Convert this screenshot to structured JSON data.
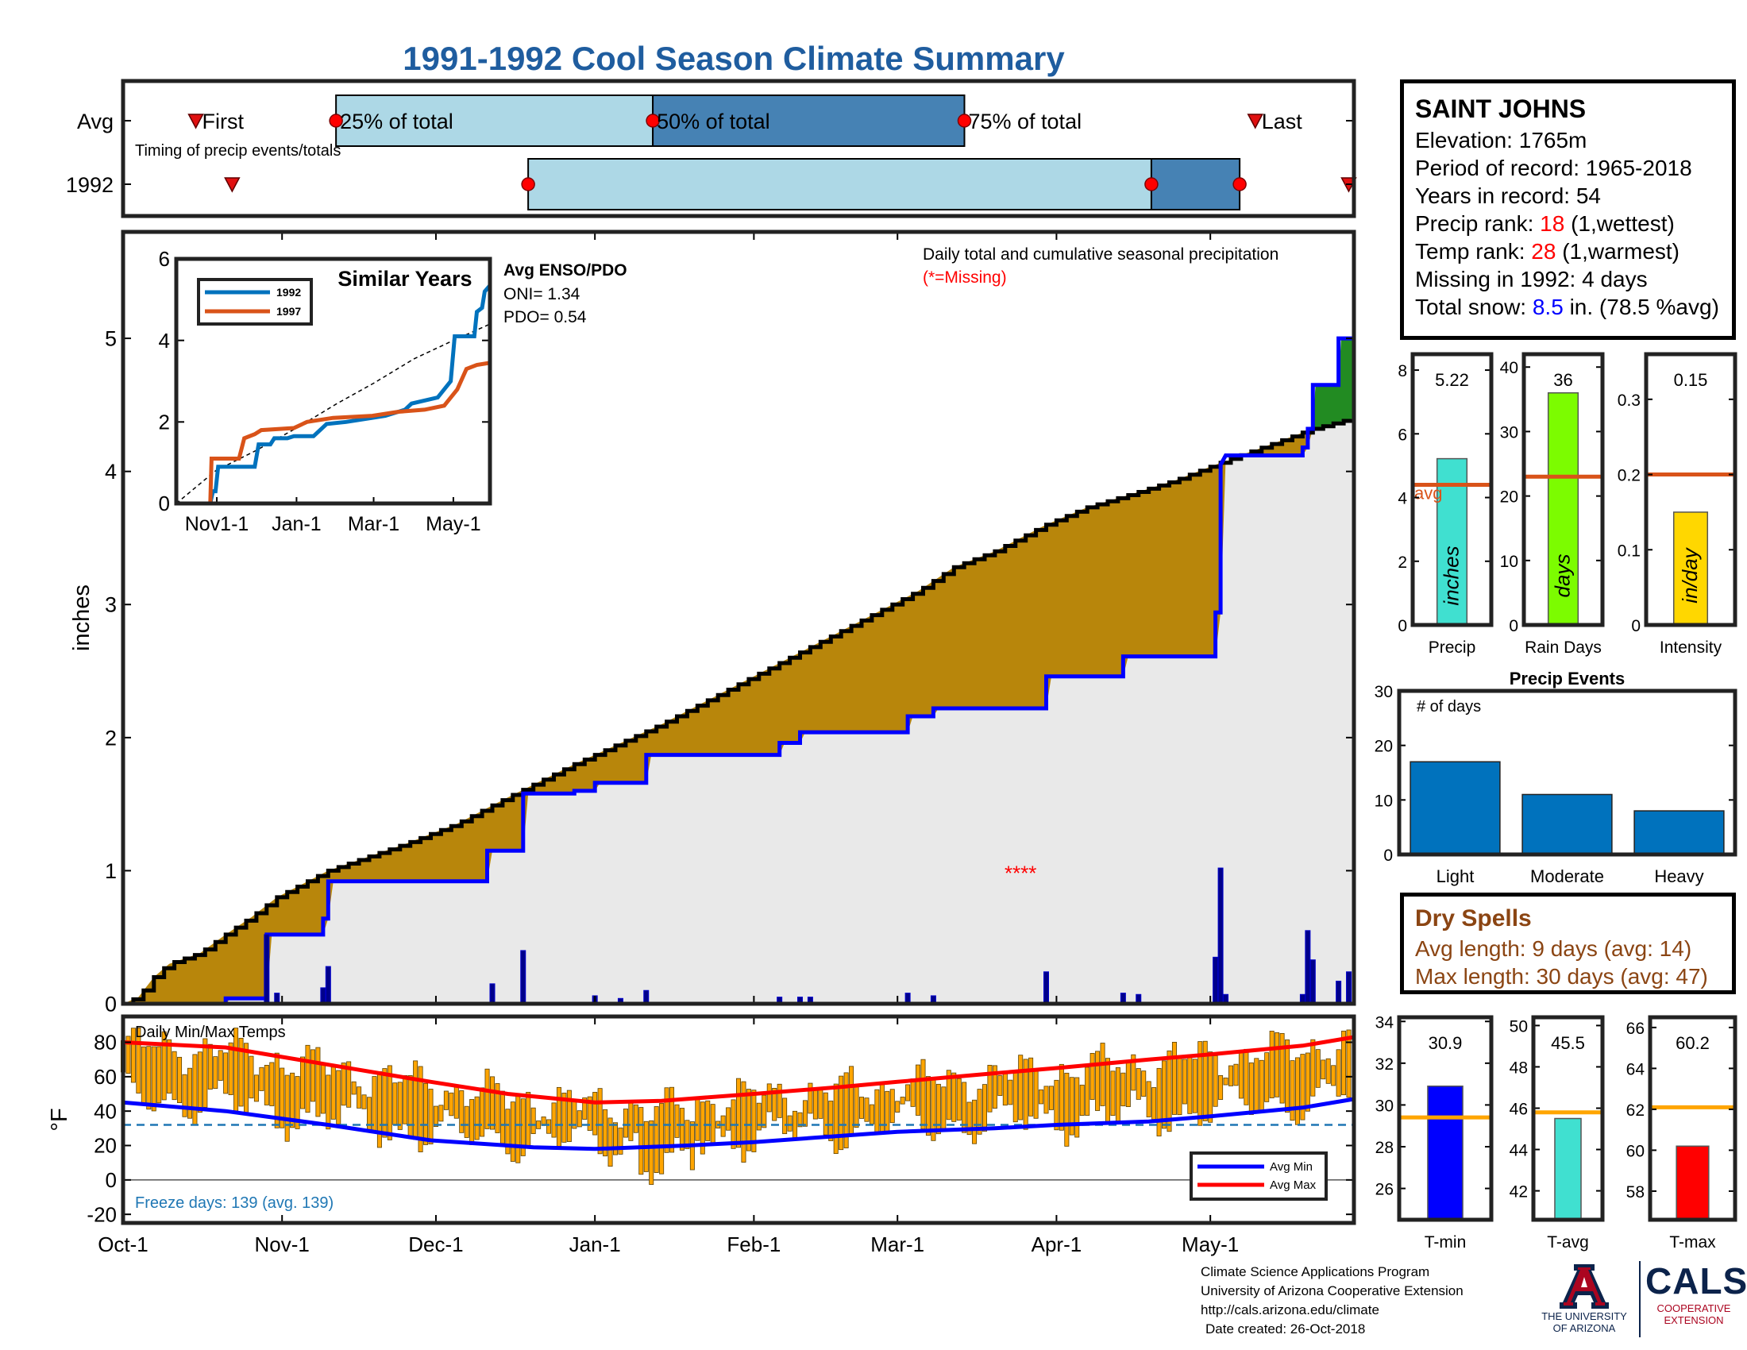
{
  "title": "1991-1992 Cool Season Climate Summary",
  "station": {
    "name": "SAINT JOHNS",
    "elevation": "Elevation: 1765m",
    "period": "Period of record: 1965-2018",
    "years": "Years in record: 54",
    "precip_rank_label": "Precip rank: ",
    "precip_rank_value": "18",
    "precip_rank_note": " (1,wettest)",
    "temp_rank_label": "Temp rank: ",
    "temp_rank_value": "28",
    "temp_rank_note": " (1,warmest)",
    "missing": "Missing in 1992: 4 days",
    "snow_label": "Total snow: ",
    "snow_value": "8.5",
    "snow_note": " in. (78.5 %avg)"
  },
  "dry_spells": {
    "title": "Dry Spells",
    "avg": "Avg length: 9 days (avg: 14)",
    "max": "Max length: 30 days (avg: 47)"
  },
  "credits": {
    "line1": "Climate Science Applications Program",
    "line2": "University of Arizona Cooperative Extension",
    "line3": "http://cals.arizona.edu/climate",
    "line4": "Date created: 26-Oct-2018",
    "logo_ua1": "THE UNIVERSITY",
    "logo_ua2": "OF ARIZONA",
    "logo_cals": "CALS",
    "logo_coop1": "COOPERATIVE",
    "logo_coop2": "EXTENSION"
  },
  "colors": {
    "observed": "#0000ff",
    "average": "#000000",
    "deficit": "#b8860b",
    "surplus": "#228b22",
    "fill_under": "#e9e9e9",
    "timing_light": "#add8e6",
    "timing_dark": "#4682b4",
    "avg_line": "#d95319",
    "temp_bar": "#ffa500",
    "avg_min": "#0000ff",
    "avg_max": "#ff0000",
    "rank_red": "#ff0000",
    "dry_title": "#8b4513"
  },
  "chart_data": [
    {
      "id": "timing",
      "type": "timing-bars",
      "rows": [
        "Avg",
        "1992"
      ],
      "note": "Timing of precip events/totals",
      "labels": [
        "First",
        "25% of total",
        "50% of total",
        "75% of total",
        "Last"
      ],
      "x_range_days": [
        0,
        237
      ],
      "avg": {
        "first": 14,
        "p25": 41,
        "p50": 102,
        "p75": 162,
        "last": 218
      },
      "y1992": {
        "first": 21,
        "p25": 78,
        "p50": 198,
        "p75": 215,
        "last": 236
      }
    },
    {
      "id": "cumulative",
      "type": "area",
      "ylabel": "inches",
      "ylim": [
        0,
        5.8
      ],
      "yticks": [
        0,
        1,
        2,
        3,
        4,
        5
      ],
      "xticks": [
        "Oct-1",
        "Nov-1",
        "Dec-1",
        "Jan-1",
        "Feb-1",
        "Mar-1",
        "Apr-1",
        "May-1"
      ],
      "xtick_days": [
        0,
        31,
        61,
        92,
        123,
        151,
        182,
        212
      ],
      "x_range_days": [
        0,
        240
      ],
      "note": "Daily total and cumulative seasonal precipitation",
      "missing_note": "(*=Missing)",
      "missing_marker_day": 175,
      "missing_marker_value": 1.0,
      "missing_glyph": "****",
      "average_cumulative": [
        [
          0,
          0
        ],
        [
          3,
          0.05
        ],
        [
          6,
          0.2
        ],
        [
          9,
          0.3
        ],
        [
          15,
          0.38
        ],
        [
          20,
          0.52
        ],
        [
          25,
          0.65
        ],
        [
          30,
          0.8
        ],
        [
          40,
          1.0
        ],
        [
          55,
          1.2
        ],
        [
          65,
          1.35
        ],
        [
          75,
          1.55
        ],
        [
          88,
          1.8
        ],
        [
          92,
          1.87
        ],
        [
          105,
          2.1
        ],
        [
          115,
          2.3
        ],
        [
          125,
          2.5
        ],
        [
          135,
          2.7
        ],
        [
          145,
          2.9
        ],
        [
          155,
          3.1
        ],
        [
          162,
          3.28
        ],
        [
          170,
          3.4
        ],
        [
          180,
          3.6
        ],
        [
          188,
          3.73
        ],
        [
          195,
          3.81
        ],
        [
          205,
          3.93
        ],
        [
          215,
          4.08
        ],
        [
          225,
          4.22
        ],
        [
          232,
          4.32
        ],
        [
          240,
          4.4
        ]
      ],
      "observed_cumulative": [
        [
          0,
          0
        ],
        [
          20,
          0
        ],
        [
          20,
          0.04
        ],
        [
          28,
          0.04
        ],
        [
          28,
          0.52
        ],
        [
          39,
          0.52
        ],
        [
          39,
          0.64
        ],
        [
          40,
          0.64
        ],
        [
          40,
          0.92
        ],
        [
          71,
          0.92
        ],
        [
          71,
          1.15
        ],
        [
          78,
          1.15
        ],
        [
          78,
          1.58
        ],
        [
          88,
          1.58
        ],
        [
          88,
          1.6
        ],
        [
          92,
          1.6
        ],
        [
          92,
          1.66
        ],
        [
          102,
          1.66
        ],
        [
          102,
          1.87
        ],
        [
          128,
          1.87
        ],
        [
          128,
          1.96
        ],
        [
          132,
          1.96
        ],
        [
          132,
          2.04
        ],
        [
          153,
          2.04
        ],
        [
          153,
          2.16
        ],
        [
          158,
          2.16
        ],
        [
          158,
          2.22
        ],
        [
          180,
          2.22
        ],
        [
          180,
          2.46
        ],
        [
          195,
          2.46
        ],
        [
          195,
          2.61
        ],
        [
          213,
          2.61
        ],
        [
          213,
          2.94
        ],
        [
          214,
          2.94
        ],
        [
          214,
          4.05
        ],
        [
          215,
          4.12
        ],
        [
          230,
          4.12
        ],
        [
          230,
          4.18
        ],
        [
          231,
          4.18
        ],
        [
          231,
          4.32
        ],
        [
          232,
          4.32
        ],
        [
          232,
          4.65
        ],
        [
          237,
          4.65
        ],
        [
          237,
          5.0
        ],
        [
          240,
          5.0
        ],
        [
          240,
          5.22
        ]
      ],
      "daily_bars": [
        [
          28,
          0.52
        ],
        [
          30,
          0.08
        ],
        [
          39,
          0.12
        ],
        [
          40,
          0.28
        ],
        [
          72,
          0.15
        ],
        [
          78,
          0.4
        ],
        [
          92,
          0.06
        ],
        [
          97,
          0.04
        ],
        [
          102,
          0.1
        ],
        [
          128,
          0.05
        ],
        [
          132,
          0.05
        ],
        [
          134,
          0.05
        ],
        [
          153,
          0.08
        ],
        [
          158,
          0.06
        ],
        [
          180,
          0.24
        ],
        [
          195,
          0.08
        ],
        [
          198,
          0.07
        ],
        [
          213,
          0.35
        ],
        [
          214,
          1.02
        ],
        [
          215,
          0.07
        ],
        [
          230,
          0.07
        ],
        [
          231,
          0.55
        ],
        [
          232,
          0.33
        ],
        [
          237,
          0.17
        ],
        [
          239,
          0.24
        ]
      ]
    },
    {
      "id": "similar",
      "type": "line",
      "title": "Similar Years",
      "ylim": [
        0,
        6
      ],
      "yticks": [
        0,
        2,
        4,
        6
      ],
      "xticks": [
        "Nov1-1",
        "Jan-1",
        "Mar-1",
        "May-1"
      ],
      "xtick_days": [
        31,
        92,
        151,
        212
      ],
      "x_range_days": [
        0,
        240
      ],
      "series": [
        {
          "name": "1992",
          "color": "#0072bd",
          "values": [
            [
              0,
              0
            ],
            [
              26,
              0
            ],
            [
              28,
              0.3
            ],
            [
              30,
              0.3
            ],
            [
              32,
              0.9
            ],
            [
              60,
              0.9
            ],
            [
              63,
              1.45
            ],
            [
              72,
              1.45
            ],
            [
              75,
              1.6
            ],
            [
              85,
              1.6
            ],
            [
              90,
              1.65
            ],
            [
              105,
              1.65
            ],
            [
              115,
              1.95
            ],
            [
              130,
              2.0
            ],
            [
              150,
              2.1
            ],
            [
              160,
              2.15
            ],
            [
              175,
              2.3
            ],
            [
              180,
              2.45
            ],
            [
              200,
              2.6
            ],
            [
              210,
              3.0
            ],
            [
              213,
              4.1
            ],
            [
              228,
              4.1
            ],
            [
              230,
              4.7
            ],
            [
              234,
              4.8
            ],
            [
              236,
              5.2
            ],
            [
              240,
              5.35
            ]
          ]
        },
        {
          "name": "1997",
          "color": "#d95319",
          "values": [
            [
              0,
              0
            ],
            [
              26,
              0
            ],
            [
              27,
              1.1
            ],
            [
              48,
              1.1
            ],
            [
              52,
              1.6
            ],
            [
              60,
              1.7
            ],
            [
              65,
              1.8
            ],
            [
              90,
              1.85
            ],
            [
              100,
              2.0
            ],
            [
              120,
              2.1
            ],
            [
              150,
              2.15
            ],
            [
              170,
              2.25
            ],
            [
              190,
              2.3
            ],
            [
              205,
              2.4
            ],
            [
              215,
              2.8
            ],
            [
              222,
              3.3
            ],
            [
              230,
              3.4
            ],
            [
              240,
              3.45
            ]
          ]
        }
      ],
      "average_series": [
        [
          0,
          0
        ],
        [
          30,
          0.8
        ],
        [
          61,
          1.3
        ],
        [
          92,
          1.85
        ],
        [
          123,
          2.45
        ],
        [
          151,
          2.95
        ],
        [
          182,
          3.55
        ],
        [
          212,
          4.0
        ],
        [
          240,
          4.4
        ]
      ],
      "enso_title": "Avg ENSO/PDO",
      "oni": "ONI= 1.34",
      "pdo": "PDO= 0.54"
    },
    {
      "id": "precip",
      "type": "bar",
      "value": 5.22,
      "value_label": "5.22",
      "avg": 4.4,
      "avg_label": "avg",
      "ylim": [
        0,
        8.5
      ],
      "yticks": [
        0,
        2,
        4,
        6,
        8
      ],
      "xlabel": "Precip",
      "unit": "inches",
      "color": "#40e0d0"
    },
    {
      "id": "raindays",
      "type": "bar",
      "value": 36,
      "value_label": "36",
      "avg": 23,
      "ylim": [
        0,
        42
      ],
      "yticks": [
        0,
        10,
        20,
        30,
        40
      ],
      "xlabel": "Rain Days",
      "unit": "days",
      "color": "#7cfc00"
    },
    {
      "id": "intensity",
      "type": "bar",
      "value": 0.15,
      "value_label": "0.15",
      "avg": 0.2,
      "ylim": [
        0,
        0.36
      ],
      "yticks": [
        0,
        0.1,
        0.2,
        0.3
      ],
      "xlabel": "Intensity",
      "unit": "in/day",
      "color": "#ffd700"
    },
    {
      "id": "events",
      "type": "bar",
      "title": "Precip Events",
      "inner_label": "# of days",
      "categories": [
        "Light",
        "Moderate",
        "Heavy"
      ],
      "values": [
        17,
        11,
        8
      ],
      "ylim": [
        0,
        30
      ],
      "yticks": [
        0,
        10,
        20,
        30
      ],
      "color": "#0072bd"
    },
    {
      "id": "temps",
      "type": "bar",
      "title": "Daily Min/Max Temps",
      "ylabel": "°F",
      "ylim": [
        -25,
        95
      ],
      "yticks": [
        -20,
        0,
        20,
        40,
        60,
        80
      ],
      "freeze_line": 32,
      "freeze_note": "Freeze days: 139 (avg. 139)",
      "legend": [
        "Avg Min",
        "Avg Max"
      ],
      "x_range_days": [
        0,
        240
      ],
      "avg_max": [
        [
          0,
          80
        ],
        [
          20,
          77
        ],
        [
          40,
          67
        ],
        [
          60,
          57
        ],
        [
          75,
          50
        ],
        [
          92,
          45
        ],
        [
          105,
          46
        ],
        [
          123,
          50
        ],
        [
          140,
          54
        ],
        [
          151,
          57
        ],
        [
          170,
          62
        ],
        [
          182,
          65
        ],
        [
          200,
          70
        ],
        [
          212,
          73
        ],
        [
          230,
          78
        ],
        [
          240,
          83
        ]
      ],
      "avg_min": [
        [
          0,
          45
        ],
        [
          20,
          40
        ],
        [
          40,
          32
        ],
        [
          60,
          23
        ],
        [
          80,
          19
        ],
        [
          92,
          18
        ],
        [
          110,
          20
        ],
        [
          123,
          22
        ],
        [
          151,
          28
        ],
        [
          170,
          30
        ],
        [
          182,
          32
        ],
        [
          200,
          34
        ],
        [
          212,
          37
        ],
        [
          230,
          42
        ],
        [
          240,
          47
        ]
      ]
    },
    {
      "id": "tmin",
      "type": "bar",
      "value": 30.9,
      "value_label": "30.9",
      "avg": 29.4,
      "ylim": [
        24.5,
        34.2
      ],
      "yticks": [
        26,
        28,
        30,
        32,
        34
      ],
      "xlabel": "T-min",
      "color": "#0000ff"
    },
    {
      "id": "tavg",
      "type": "bar",
      "value": 45.5,
      "value_label": "45.5",
      "avg": 45.8,
      "ylim": [
        40.6,
        50.4
      ],
      "yticks": [
        42,
        44,
        46,
        48,
        50
      ],
      "xlabel": "T-avg",
      "color": "#40e0d0"
    },
    {
      "id": "tmax",
      "type": "bar",
      "value": 60.2,
      "value_label": "60.2",
      "avg": 62.1,
      "ylim": [
        56.6,
        66.5
      ],
      "yticks": [
        58,
        60,
        62,
        64,
        66
      ],
      "xlabel": "T-max",
      "color": "#ff0000"
    }
  ]
}
